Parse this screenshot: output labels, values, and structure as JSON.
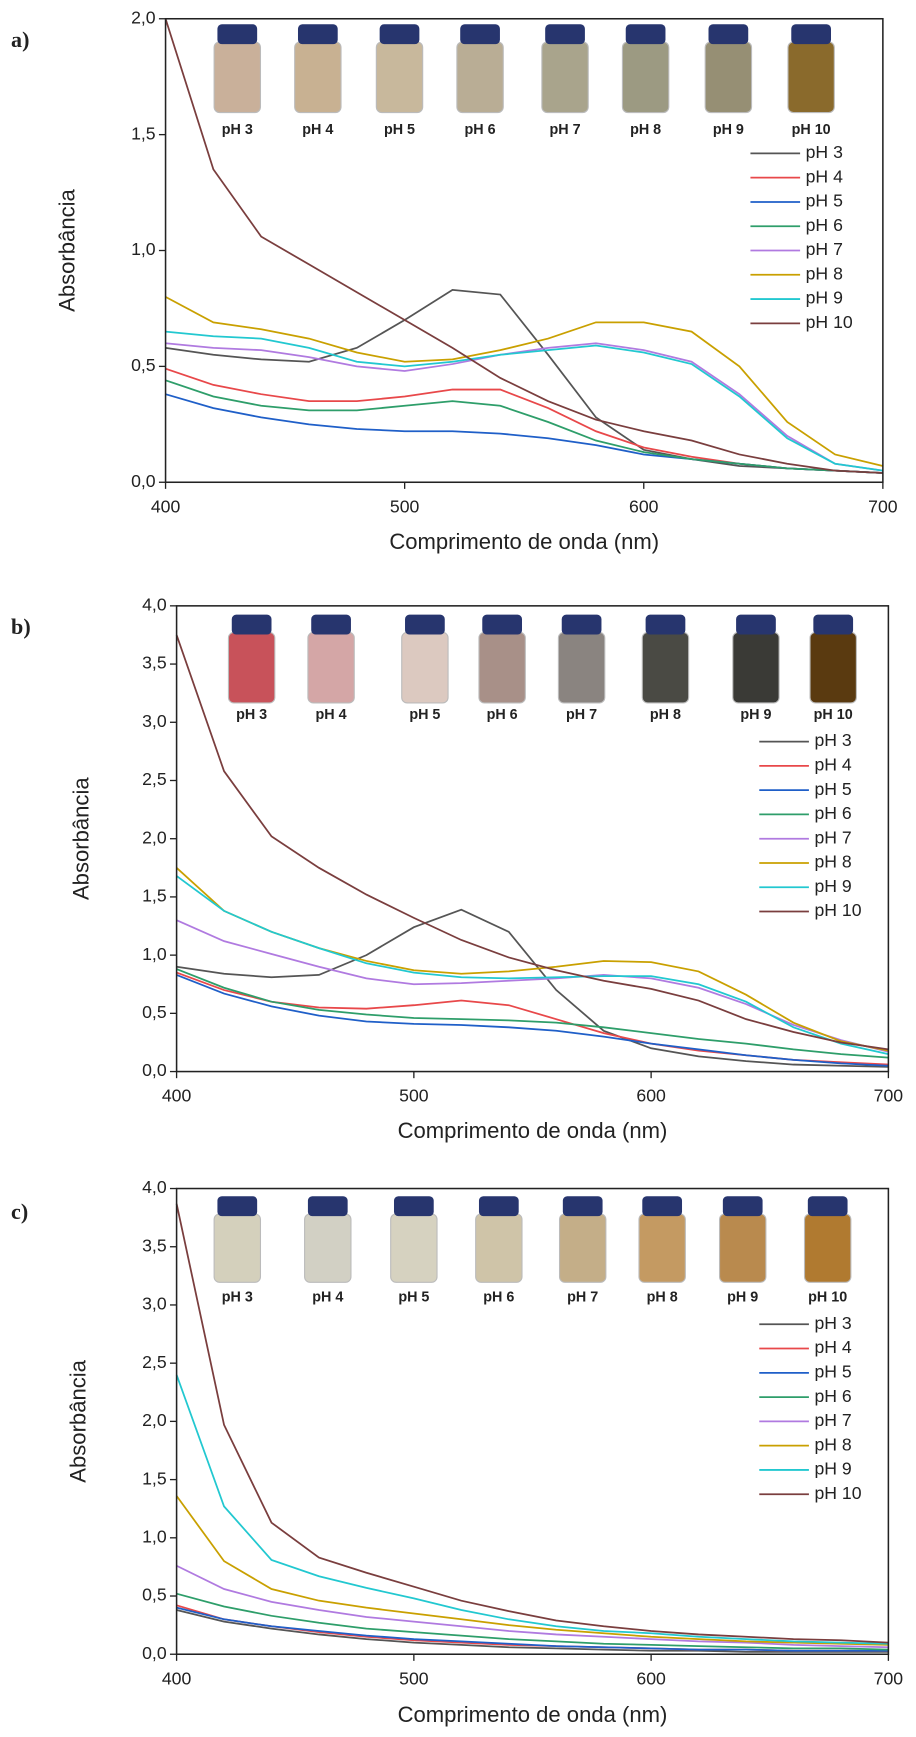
{
  "chart_data": [
    {
      "type": "line",
      "label": "a)",
      "xlabel": "Comprimento de onda (nm)",
      "ylabel": "Absorbância",
      "vial_labels": [
        "pH 3",
        "pH 4",
        "pH 5",
        "pH 6",
        "pH 7",
        "pH 8",
        "pH 9",
        "pH 10"
      ],
      "x": [
        400,
        420,
        440,
        460,
        480,
        500,
        520,
        540,
        560,
        580,
        600,
        620,
        640,
        660,
        680,
        700
      ],
      "xlim": [
        400,
        700
      ],
      "xticks": [
        400,
        500,
        600,
        700
      ],
      "ylim": [
        0,
        2
      ],
      "yticks": [
        {
          "value": 0,
          "label": "0,0"
        },
        {
          "value": 0.5,
          "label": "0,5"
        },
        {
          "value": 1,
          "label": "1,0"
        },
        {
          "value": 1.5,
          "label": "1,5"
        },
        {
          "value": 2,
          "label": "2,0"
        }
      ],
      "legend": "right",
      "series": [
        {
          "name": "pH 3",
          "color": "#555555",
          "values": [
            0.58,
            0.55,
            0.53,
            0.52,
            0.58,
            0.7,
            0.83,
            0.81,
            0.55,
            0.28,
            0.14,
            0.1,
            0.07,
            0.06,
            0.05,
            0.04
          ]
        },
        {
          "name": "pH 4",
          "color": "#e8484a",
          "values": [
            0.49,
            0.42,
            0.38,
            0.35,
            0.35,
            0.37,
            0.4,
            0.4,
            0.32,
            0.22,
            0.15,
            0.11,
            0.08,
            0.06,
            0.05,
            0.04
          ]
        },
        {
          "name": "pH 5",
          "color": "#1f5fc8",
          "values": [
            0.38,
            0.32,
            0.28,
            0.25,
            0.23,
            0.22,
            0.22,
            0.21,
            0.19,
            0.16,
            0.12,
            0.1,
            0.08,
            0.06,
            0.05,
            0.04
          ]
        },
        {
          "name": "pH 6",
          "color": "#2e9e6a",
          "values": [
            0.44,
            0.37,
            0.33,
            0.31,
            0.31,
            0.33,
            0.35,
            0.33,
            0.26,
            0.18,
            0.13,
            0.1,
            0.08,
            0.06,
            0.05,
            0.04
          ]
        },
        {
          "name": "pH 7",
          "color": "#b07ae0",
          "values": [
            0.6,
            0.58,
            0.57,
            0.54,
            0.5,
            0.48,
            0.51,
            0.55,
            0.58,
            0.6,
            0.57,
            0.52,
            0.38,
            0.2,
            0.08,
            0.05
          ]
        },
        {
          "name": "pH 8",
          "color": "#c9a000",
          "values": [
            0.8,
            0.69,
            0.66,
            0.62,
            0.56,
            0.52,
            0.53,
            0.57,
            0.62,
            0.69,
            0.69,
            0.65,
            0.5,
            0.26,
            0.12,
            0.07
          ]
        },
        {
          "name": "pH 9",
          "color": "#22c8d0",
          "values": [
            0.65,
            0.63,
            0.62,
            0.58,
            0.52,
            0.5,
            0.52,
            0.55,
            0.57,
            0.59,
            0.56,
            0.51,
            0.37,
            0.19,
            0.08,
            0.05
          ]
        },
        {
          "name": "pH 10",
          "color": "#7a3e3e",
          "values": [
            2.0,
            1.35,
            1.06,
            0.94,
            0.82,
            0.7,
            0.58,
            0.45,
            0.35,
            0.27,
            0.22,
            0.18,
            0.12,
            0.08,
            0.05,
            0.04
          ]
        }
      ]
    },
    {
      "type": "line",
      "label": "b)",
      "xlabel": "Comprimento de onda (nm)",
      "ylabel": "Absorbância",
      "vial_labels": [
        "pH 3",
        "pH 4",
        "pH 5",
        "pH 6",
        "pH 7",
        "pH 8",
        "pH 9",
        "pH 10"
      ],
      "x": [
        400,
        420,
        440,
        460,
        480,
        500,
        520,
        540,
        560,
        580,
        600,
        620,
        640,
        660,
        680,
        700
      ],
      "xlim": [
        400,
        700
      ],
      "xticks": [
        400,
        500,
        600,
        700
      ],
      "ylim": [
        0,
        4
      ],
      "yticks": [
        {
          "value": 0,
          "label": "0,0"
        },
        {
          "value": 0.5,
          "label": "0,5"
        },
        {
          "value": 1,
          "label": "1,0"
        },
        {
          "value": 1.5,
          "label": "1,5"
        },
        {
          "value": 2,
          "label": "2,0"
        },
        {
          "value": 2.5,
          "label": "2,5"
        },
        {
          "value": 3,
          "label": "3,0"
        },
        {
          "value": 3.5,
          "label": "3,5"
        },
        {
          "value": 4,
          "label": "4,0"
        }
      ],
      "legend": "right",
      "series": [
        {
          "name": "pH 3",
          "color": "#555555",
          "values": [
            0.9,
            0.84,
            0.81,
            0.83,
            1.0,
            1.24,
            1.39,
            1.2,
            0.7,
            0.35,
            0.2,
            0.13,
            0.09,
            0.06,
            0.05,
            0.04
          ]
        },
        {
          "name": "pH 4",
          "color": "#e8484a",
          "values": [
            0.85,
            0.7,
            0.6,
            0.55,
            0.54,
            0.57,
            0.61,
            0.57,
            0.45,
            0.33,
            0.24,
            0.18,
            0.14,
            0.1,
            0.08,
            0.06
          ]
        },
        {
          "name": "pH 5",
          "color": "#1f5fc8",
          "values": [
            0.83,
            0.67,
            0.56,
            0.48,
            0.43,
            0.41,
            0.4,
            0.38,
            0.35,
            0.3,
            0.24,
            0.19,
            0.14,
            0.1,
            0.07,
            0.05
          ]
        },
        {
          "name": "pH 6",
          "color": "#2e9e6a",
          "values": [
            0.88,
            0.72,
            0.6,
            0.53,
            0.49,
            0.46,
            0.45,
            0.44,
            0.42,
            0.38,
            0.33,
            0.28,
            0.24,
            0.19,
            0.15,
            0.12
          ]
        },
        {
          "name": "pH 7",
          "color": "#b07ae0",
          "values": [
            1.3,
            1.12,
            1.01,
            0.9,
            0.8,
            0.75,
            0.76,
            0.78,
            0.8,
            0.83,
            0.8,
            0.72,
            0.58,
            0.4,
            0.27,
            0.17
          ]
        },
        {
          "name": "pH 8",
          "color": "#c9a000",
          "values": [
            1.75,
            1.38,
            1.2,
            1.06,
            0.95,
            0.87,
            0.84,
            0.86,
            0.9,
            0.95,
            0.94,
            0.86,
            0.66,
            0.42,
            0.26,
            0.18
          ]
        },
        {
          "name": "pH 9",
          "color": "#22c8d0",
          "values": [
            1.68,
            1.38,
            1.2,
            1.06,
            0.93,
            0.85,
            0.81,
            0.8,
            0.81,
            0.82,
            0.82,
            0.75,
            0.6,
            0.38,
            0.24,
            0.15
          ]
        },
        {
          "name": "pH 10",
          "color": "#7a3e3e",
          "values": [
            3.75,
            2.58,
            2.02,
            1.75,
            1.52,
            1.32,
            1.13,
            0.98,
            0.87,
            0.78,
            0.71,
            0.61,
            0.45,
            0.34,
            0.25,
            0.19
          ]
        }
      ]
    },
    {
      "type": "line",
      "label": "c)",
      "xlabel": "Comprimento de onda (nm)",
      "ylabel": "Absorbância",
      "vial_labels": [
        "pH 3",
        "pH 4",
        "pH 5",
        "pH 6",
        "pH 7",
        "pH 8",
        "pH 9",
        "pH 10"
      ],
      "x": [
        400,
        420,
        440,
        460,
        480,
        500,
        520,
        540,
        560,
        580,
        600,
        620,
        640,
        660,
        680,
        700
      ],
      "xlim": [
        400,
        700
      ],
      "xticks": [
        400,
        500,
        600,
        700
      ],
      "ylim": [
        0,
        4
      ],
      "yticks": [
        {
          "value": 0,
          "label": "0,0"
        },
        {
          "value": 0.5,
          "label": "0,5"
        },
        {
          "value": 1,
          "label": "1,0"
        },
        {
          "value": 1.5,
          "label": "1,5"
        },
        {
          "value": 2,
          "label": "2,0"
        },
        {
          "value": 2.5,
          "label": "2,5"
        },
        {
          "value": 3,
          "label": "3,0"
        },
        {
          "value": 3.5,
          "label": "3,5"
        },
        {
          "value": 4,
          "label": "4,0"
        }
      ],
      "legend": "right",
      "series": [
        {
          "name": "pH 3",
          "color": "#555555",
          "values": [
            0.38,
            0.28,
            0.22,
            0.17,
            0.13,
            0.1,
            0.08,
            0.06,
            0.05,
            0.04,
            0.03,
            0.03,
            0.02,
            0.02,
            0.02,
            0.02
          ]
        },
        {
          "name": "pH 4",
          "color": "#e8484a",
          "values": [
            0.42,
            0.3,
            0.24,
            0.19,
            0.15,
            0.12,
            0.1,
            0.08,
            0.07,
            0.06,
            0.05,
            0.04,
            0.04,
            0.03,
            0.03,
            0.03
          ]
        },
        {
          "name": "pH 5",
          "color": "#1f5fc8",
          "values": [
            0.4,
            0.3,
            0.24,
            0.2,
            0.16,
            0.13,
            0.11,
            0.09,
            0.07,
            0.06,
            0.05,
            0.04,
            0.04,
            0.03,
            0.03,
            0.03
          ]
        },
        {
          "name": "pH 6",
          "color": "#2e9e6a",
          "values": [
            0.52,
            0.41,
            0.33,
            0.27,
            0.22,
            0.19,
            0.16,
            0.13,
            0.11,
            0.09,
            0.08,
            0.07,
            0.06,
            0.05,
            0.05,
            0.04
          ]
        },
        {
          "name": "pH 7",
          "color": "#b07ae0",
          "values": [
            0.76,
            0.56,
            0.45,
            0.38,
            0.32,
            0.28,
            0.24,
            0.2,
            0.17,
            0.15,
            0.13,
            0.11,
            0.1,
            0.08,
            0.07,
            0.06
          ]
        },
        {
          "name": "pH 8",
          "color": "#c9a000",
          "values": [
            1.36,
            0.8,
            0.56,
            0.46,
            0.4,
            0.35,
            0.3,
            0.25,
            0.21,
            0.18,
            0.15,
            0.13,
            0.11,
            0.1,
            0.09,
            0.08
          ]
        },
        {
          "name": "pH 9",
          "color": "#22c8d0",
          "values": [
            2.4,
            1.27,
            0.81,
            0.67,
            0.57,
            0.48,
            0.38,
            0.3,
            0.24,
            0.2,
            0.18,
            0.15,
            0.13,
            0.11,
            0.1,
            0.09
          ]
        },
        {
          "name": "pH 10",
          "color": "#7a3e3e",
          "values": [
            3.87,
            1.97,
            1.13,
            0.83,
            0.7,
            0.58,
            0.46,
            0.37,
            0.29,
            0.24,
            0.2,
            0.17,
            0.15,
            0.13,
            0.12,
            0.1
          ]
        }
      ]
    }
  ]
}
